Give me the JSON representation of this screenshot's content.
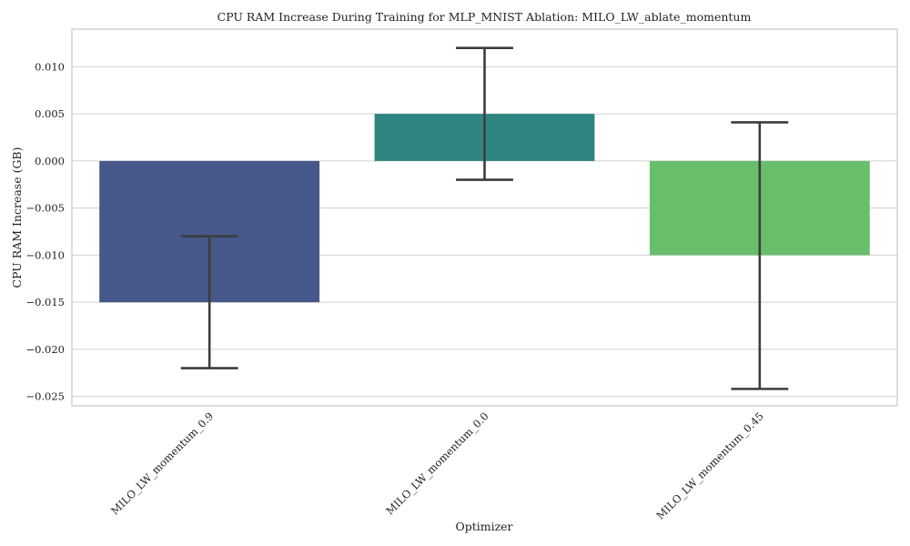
{
  "chart_data": {
    "type": "bar",
    "title": "CPU RAM Increase During Training for MLP_MNIST Ablation: MILO_LW_ablate_momentum",
    "xlabel": "Optimizer",
    "ylabel": "CPU RAM Increase (GB)",
    "ylim": [
      -0.026,
      0.014
    ],
    "yticks": [
      0.01,
      0.005,
      0.0,
      -0.005,
      -0.01,
      -0.015,
      -0.02,
      -0.025
    ],
    "ytick_labels": [
      "0.010",
      "0.005",
      "0.000",
      "−0.005",
      "−0.010",
      "−0.015",
      "−0.020",
      "−0.025"
    ],
    "grid": true,
    "categories": [
      "MILO_LW_momentum_0.9",
      "MILO_LW_momentum_0.0",
      "MILO_LW_momentum_0.45"
    ],
    "values": [
      -0.015,
      0.005,
      -0.01
    ],
    "error_low": [
      -0.022,
      -0.002,
      -0.0242
    ],
    "error_high": [
      -0.008,
      0.012,
      0.0041
    ],
    "colors": [
      "#46578a",
      "#2e8580",
      "#69be6b"
    ],
    "error_color": "#3d3d3d"
  }
}
